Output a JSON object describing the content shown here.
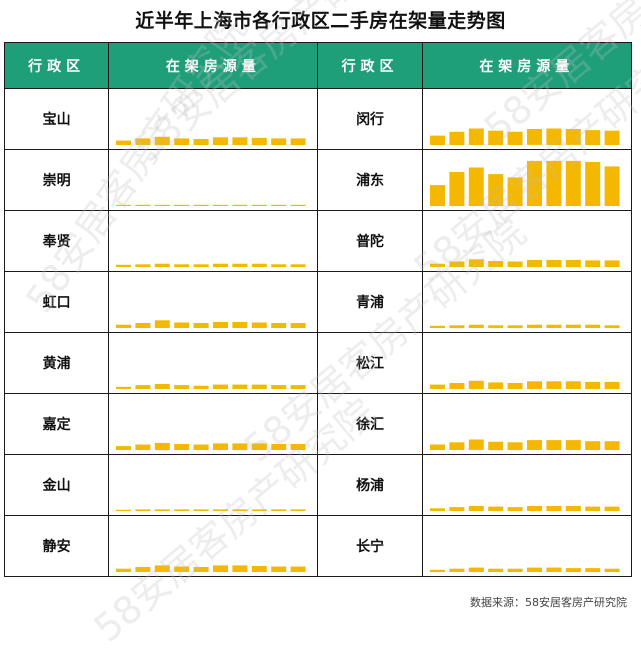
{
  "title": "近半年上海市各行政区二手房在架量走势图",
  "headers": {
    "district": "行政区",
    "listing": "在架房源量"
  },
  "source": "数据来源：58安居客房产研究院",
  "watermark": "58安居客房产研究院",
  "colors": {
    "header_bg": "#1f9e7a",
    "bar": "#f5b800"
  },
  "chart_data": {
    "type": "bar",
    "note_scale": "relative listing volume, arbitrary units",
    "months": 10,
    "ylim": [
      0,
      100
    ],
    "districts": [
      {
        "name": "宝山",
        "values": [
          8,
          12,
          15,
          12,
          11,
          14,
          14,
          13,
          12,
          12
        ]
      },
      {
        "name": "崇明",
        "values": [
          1,
          1,
          1,
          1,
          1,
          1,
          1,
          1,
          1,
          1
        ]
      },
      {
        "name": "奉贤",
        "values": [
          4,
          5,
          6,
          5,
          5,
          6,
          6,
          6,
          5,
          5
        ]
      },
      {
        "name": "虹口",
        "values": [
          6,
          9,
          14,
          10,
          9,
          11,
          11,
          10,
          9,
          9
        ]
      },
      {
        "name": "黄浦",
        "values": [
          4,
          7,
          9,
          7,
          6,
          8,
          8,
          8,
          7,
          7
        ]
      },
      {
        "name": "嘉定",
        "values": [
          7,
          10,
          13,
          11,
          10,
          12,
          12,
          12,
          11,
          11
        ]
      },
      {
        "name": "金山",
        "values": [
          2,
          3,
          3,
          3,
          3,
          3,
          3,
          3,
          3,
          3
        ]
      },
      {
        "name": "静安",
        "values": [
          6,
          9,
          12,
          10,
          9,
          12,
          12,
          11,
          10,
          10
        ]
      },
      {
        "name": "闵行",
        "values": [
          17,
          24,
          30,
          26,
          24,
          29,
          30,
          29,
          27,
          26
        ]
      },
      {
        "name": "浦东",
        "values": [
          38,
          62,
          70,
          58,
          52,
          82,
          82,
          82,
          80,
          72
        ]
      },
      {
        "name": "普陀",
        "values": [
          6,
          10,
          14,
          11,
          10,
          13,
          13,
          13,
          12,
          12
        ]
      },
      {
        "name": "青浦",
        "values": [
          4,
          5,
          6,
          5,
          5,
          6,
          6,
          6,
          6,
          5
        ]
      },
      {
        "name": "松江",
        "values": [
          8,
          11,
          15,
          12,
          11,
          14,
          14,
          14,
          13,
          13
        ]
      },
      {
        "name": "徐汇",
        "values": [
          10,
          14,
          19,
          15,
          14,
          18,
          18,
          18,
          16,
          16
        ]
      },
      {
        "name": "杨浦",
        "values": [
          5,
          7,
          9,
          8,
          7,
          9,
          9,
          9,
          8,
          8
        ]
      },
      {
        "name": "长宁",
        "values": [
          4,
          6,
          8,
          6,
          6,
          8,
          8,
          7,
          7,
          6
        ]
      }
    ]
  }
}
